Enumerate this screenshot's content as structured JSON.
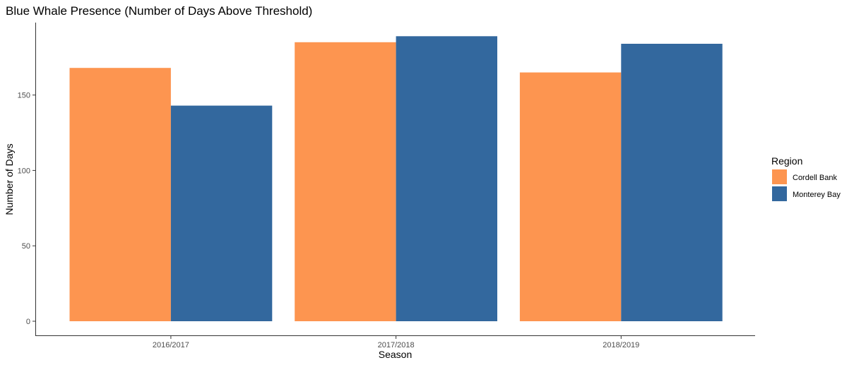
{
  "chart_data": {
    "type": "bar",
    "title": "Blue Whale Presence (Number of Days Above Threshold)",
    "xlabel": "Season",
    "ylabel": "Number of Days",
    "categories": [
      "2016/2017",
      "2017/2018",
      "2018/2019"
    ],
    "series": [
      {
        "name": "Cordell Bank",
        "color": "#fd9550",
        "values": [
          168,
          185,
          165
        ]
      },
      {
        "name": "Monterey Bay",
        "color": "#33689e",
        "values": [
          143,
          189,
          184
        ]
      }
    ],
    "ylim": [
      0,
      195
    ],
    "yticks": [
      0,
      50,
      100,
      150
    ],
    "grid": false,
    "legend": {
      "title": "Region",
      "position": "right"
    }
  }
}
